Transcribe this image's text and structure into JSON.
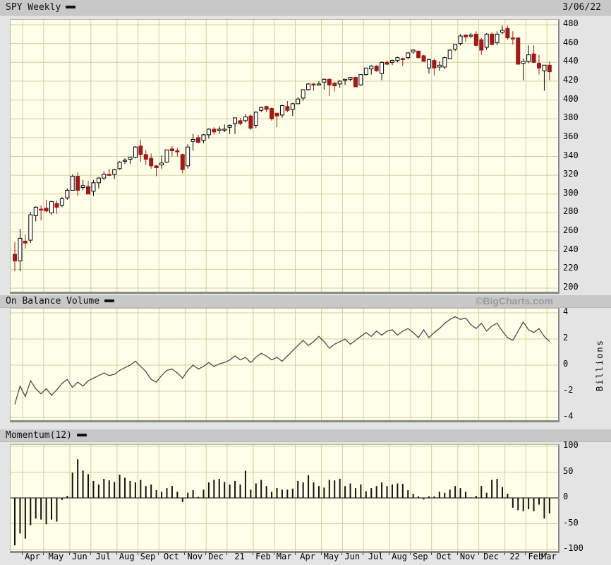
{
  "header": {
    "title": "SPY Weekly",
    "date": "3/06/22"
  },
  "watermark": "©BigCharts.com",
  "panels": {
    "obv": {
      "title": "On Balance Volume",
      "unit_label": "Billions"
    },
    "momentum": {
      "title": "Momentum(12)"
    }
  },
  "colors": {
    "background": "#e4e4e4",
    "panel_bg": "#ffffe9",
    "grid": "#cfcf9e",
    "down": "#a01818",
    "up_fill": "#ffffff",
    "line": "#4a4a4a",
    "header_bar": "#c8c8c8",
    "watermark": "#9a9a9a"
  },
  "chart_data": [
    {
      "type": "candlestick",
      "title": "SPY Weekly",
      "ylim": [
        200,
        480
      ],
      "y_ticks": [
        480,
        460,
        440,
        420,
        400,
        380,
        360,
        340,
        320,
        300,
        280,
        260,
        240,
        220,
        200
      ],
      "x_axis_months": [
        {
          "label": "",
          "weeks": 2
        },
        {
          "label": "Apr",
          "weeks": 4
        },
        {
          "label": "May",
          "weeks": 5
        },
        {
          "label": "Jun",
          "weeks": 4
        },
        {
          "label": "Jul",
          "weeks": 5
        },
        {
          "label": "Aug",
          "weeks": 4
        },
        {
          "label": "Sep",
          "weeks": 4
        },
        {
          "label": "Oct",
          "weeks": 5
        },
        {
          "label": "Nov",
          "weeks": 4
        },
        {
          "label": "Dec",
          "weeks": 4
        },
        {
          "label": "21",
          "weeks": 5
        },
        {
          "label": "Feb",
          "weeks": 4
        },
        {
          "label": "Mar",
          "weeks": 4
        },
        {
          "label": "Apr",
          "weeks": 5
        },
        {
          "label": "May",
          "weeks": 4
        },
        {
          "label": "Jun",
          "weeks": 4
        },
        {
          "label": "Jul",
          "weeks": 5
        },
        {
          "label": "Aug",
          "weeks": 4
        },
        {
          "label": "Sep",
          "weeks": 4
        },
        {
          "label": "Oct",
          "weeks": 5
        },
        {
          "label": "Nov",
          "weeks": 4
        },
        {
          "label": "Dec",
          "weeks": 5
        },
        {
          "label": "22",
          "weeks": 4
        },
        {
          "label": "Feb",
          "weeks": 4
        },
        {
          "label": "Mar",
          "weeks": 1
        }
      ],
      "ohlc": [
        [
          236,
          249,
          218,
          229
        ],
        [
          229,
          263,
          218,
          253
        ],
        [
          250,
          257,
          242,
          248
        ],
        [
          251,
          281,
          248,
          278
        ],
        [
          277,
          287,
          271,
          286
        ],
        [
          284,
          288,
          272,
          283
        ],
        [
          285,
          294,
          281,
          282
        ],
        [
          280,
          293,
          278,
          292
        ],
        [
          290,
          293,
          279,
          286
        ],
        [
          288,
          297,
          286,
          295
        ],
        [
          296,
          306,
          294,
          304
        ],
        [
          304,
          321,
          304,
          319
        ],
        [
          319,
          323,
          298,
          304
        ],
        [
          307,
          315,
          304,
          309
        ],
        [
          308,
          314,
          300,
          300
        ],
        [
          303,
          315,
          298,
          312
        ],
        [
          312,
          318,
          306,
          317
        ],
        [
          317,
          324,
          315,
          321
        ],
        [
          321,
          327,
          319,
          320
        ],
        [
          321,
          327,
          316,
          326
        ],
        [
          327,
          335,
          326,
          334
        ],
        [
          335,
          338,
          332,
          336
        ],
        [
          337,
          340,
          332,
          339
        ],
        [
          339,
          351,
          338,
          350
        ],
        [
          351,
          358,
          334,
          342
        ],
        [
          342,
          347,
          331,
          337
        ],
        [
          338,
          343,
          327,
          330
        ],
        [
          330,
          331,
          319,
          328
        ],
        [
          331,
          341,
          327,
          333
        ],
        [
          334,
          347,
          333,
          347
        ],
        [
          348,
          351,
          340,
          346
        ],
        [
          346,
          349,
          340,
          345
        ],
        [
          342,
          343,
          322,
          326
        ],
        [
          330,
          353,
          327,
          350
        ],
        [
          356,
          364,
          346,
          358
        ],
        [
          360,
          363,
          354,
          355
        ],
        [
          357,
          364,
          354,
          363
        ],
        [
          363,
          370,
          359,
          369
        ],
        [
          369,
          371,
          363,
          366
        ],
        [
          368,
          372,
          364,
          369
        ],
        [
          368,
          374,
          366,
          369
        ],
        [
          371,
          374,
          364,
          373
        ],
        [
          375,
          381,
          364,
          381
        ],
        [
          378,
          381,
          373,
          375
        ],
        [
          378,
          385,
          376,
          382
        ],
        [
          383,
          385,
          368,
          370
        ],
        [
          373,
          388,
          370,
          387
        ],
        [
          389,
          393,
          387,
          392
        ],
        [
          393,
          394,
          387,
          390
        ],
        [
          391,
          392,
          378,
          380
        ],
        [
          386,
          386,
          371,
          383
        ],
        [
          384,
          395,
          381,
          394
        ],
        [
          393,
          399,
          387,
          389
        ],
        [
          390,
          397,
          383,
          396
        ],
        [
          396,
          403,
          396,
          401
        ],
        [
          402,
          411,
          399,
          411
        ],
        [
          411,
          418,
          410,
          417
        ],
        [
          417,
          418,
          410,
          416
        ],
        [
          417,
          420,
          416,
          417
        ],
        [
          419,
          423,
          411,
          422
        ],
        [
          422,
          423,
          404,
          416
        ],
        [
          418,
          419,
          409,
          415
        ],
        [
          417,
          421,
          413,
          420
        ],
        [
          421,
          422,
          416,
          422
        ],
        [
          422,
          424,
          420,
          424
        ],
        [
          424,
          425,
          414,
          414
        ],
        [
          416,
          427,
          415,
          427
        ],
        [
          427,
          434,
          426,
          434
        ],
        [
          433,
          437,
          427,
          436
        ],
        [
          436,
          437,
          430,
          431
        ],
        [
          428,
          441,
          421,
          440
        ],
        [
          440,
          442,
          437,
          438
        ],
        [
          440,
          443,
          437,
          442
        ],
        [
          442,
          446,
          440,
          445
        ],
        [
          444,
          445,
          436,
          443
        ],
        [
          445,
          451,
          443,
          450
        ],
        [
          451,
          454,
          449,
          453
        ],
        [
          452,
          452,
          444,
          445
        ],
        [
          447,
          448,
          441,
          441
        ],
        [
          434,
          444,
          428,
          443
        ],
        [
          442,
          444,
          426,
          434
        ],
        [
          435,
          441,
          431,
          437
        ],
        [
          435,
          446,
          433,
          445
        ],
        [
          444,
          454,
          444,
          453
        ],
        [
          454,
          459,
          452,
          459
        ],
        [
          460,
          470,
          458,
          468
        ],
        [
          469,
          470,
          462,
          467
        ],
        [
          468,
          471,
          466,
          469
        ],
        [
          470,
          473,
          457,
          458
        ],
        [
          464,
          466,
          448,
          453
        ],
        [
          456,
          471,
          453,
          470
        ],
        [
          470,
          472,
          458,
          459
        ],
        [
          461,
          473,
          458,
          470
        ],
        [
          472,
          479,
          470,
          474
        ],
        [
          476,
          479,
          464,
          466
        ],
        [
          466,
          473,
          459,
          465
        ],
        [
          466,
          466,
          438,
          438
        ],
        [
          439,
          444,
          421,
          441
        ],
        [
          441,
          458,
          439,
          448
        ],
        [
          449,
          458,
          439,
          440
        ],
        [
          439,
          448,
          427,
          434
        ],
        [
          431,
          437,
          410,
          437
        ],
        [
          437,
          441,
          421,
          430
        ]
      ]
    },
    {
      "type": "line",
      "title": "On Balance Volume",
      "ylabel": "Billions",
      "ylim": [
        -4,
        4
      ],
      "y_ticks": [
        4,
        2,
        0,
        -2,
        -4
      ],
      "values": [
        -3.0,
        -1.6,
        -2.4,
        -1.2,
        -1.8,
        -2.2,
        -1.8,
        -2.3,
        -1.9,
        -1.4,
        -1.1,
        -1.7,
        -1.3,
        -1.6,
        -1.2,
        -1.0,
        -0.8,
        -0.6,
        -0.8,
        -0.7,
        -0.4,
        -0.2,
        0.0,
        0.3,
        -0.1,
        -0.5,
        -1.1,
        -1.3,
        -0.8,
        -0.4,
        -0.3,
        -0.6,
        -1.0,
        -0.4,
        0.0,
        -0.3,
        -0.1,
        0.2,
        -0.1,
        0.1,
        0.2,
        0.4,
        0.7,
        0.4,
        0.6,
        0.2,
        0.6,
        0.9,
        0.7,
        0.4,
        0.6,
        0.3,
        0.7,
        1.1,
        1.5,
        1.9,
        1.5,
        1.8,
        2.2,
        1.8,
        1.3,
        1.6,
        1.8,
        2.0,
        1.6,
        1.9,
        2.2,
        2.5,
        2.2,
        2.6,
        2.3,
        2.6,
        2.7,
        2.3,
        2.6,
        2.8,
        2.5,
        2.1,
        2.7,
        2.1,
        2.5,
        2.8,
        3.2,
        3.5,
        3.7,
        3.5,
        3.6,
        3.1,
        2.8,
        3.2,
        2.6,
        3.0,
        3.2,
        2.6,
        2.1,
        1.9,
        2.6,
        3.3,
        2.7,
        2.5,
        2.8,
        2.2,
        1.8
      ]
    },
    {
      "type": "bar",
      "title": "Momentum(12)",
      "ylim": [
        -100,
        100
      ],
      "y_ticks": [
        100,
        50,
        0,
        -50,
        -100
      ],
      "values": [
        -92,
        -69,
        -79,
        -53,
        -40,
        -42,
        -51,
        -42,
        -46,
        -4,
        4,
        49,
        75,
        53,
        46,
        33,
        26,
        37,
        34,
        31,
        45,
        39,
        33,
        30,
        35,
        23,
        26,
        15,
        12,
        19,
        23,
        12,
        -8,
        10,
        15,
        2,
        16,
        30,
        35,
        37,
        31,
        26,
        33,
        26,
        53,
        16,
        28,
        35,
        23,
        12,
        19,
        16,
        16,
        18,
        33,
        30,
        44,
        30,
        23,
        20,
        35,
        34,
        37,
        23,
        28,
        19,
        26,
        13,
        19,
        23,
        30,
        23,
        26,
        28,
        27,
        15,
        8,
        3,
        -3,
        3,
        3,
        12,
        10,
        16,
        23,
        19,
        12,
        1,
        4,
        23,
        10,
        35,
        37,
        21,
        8,
        -19,
        -24,
        -26,
        -22,
        -26,
        -13,
        -40,
        -30
      ]
    }
  ]
}
